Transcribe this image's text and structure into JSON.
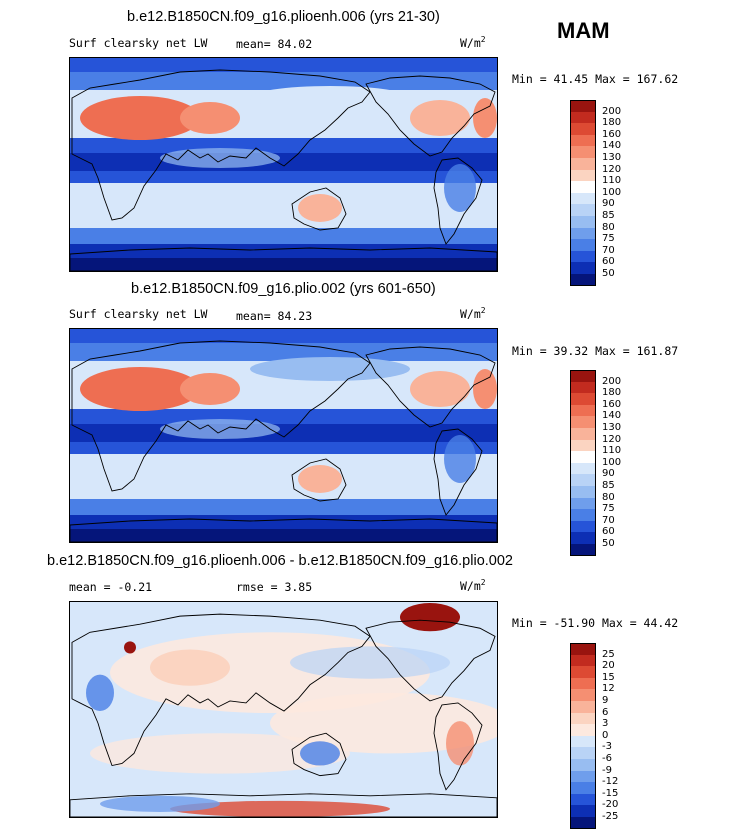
{
  "season": "MAM",
  "units_base": "W/m",
  "units_exp": "2",
  "panels": [
    {
      "title": "b.e12.B1850CN.f09_g16.plioenh.006 (yrs 21-30)",
      "variable": "Surf clearsky net LW",
      "mean_text": "mean=  84.02",
      "rmse_text": "",
      "minmax_text": "Min =  41.45 Max = 167.62"
    },
    {
      "title": "b.e12.B1850CN.f09_g16.plio.002 (yrs 601-650)",
      "variable": "Surf clearsky net LW",
      "mean_text": "mean=  84.23",
      "rmse_text": "",
      "minmax_text": "Min =  39.32 Max = 161.87"
    },
    {
      "title": "b.e12.B1850CN.f09_g16.plioenh.006 - b.e12.B1850CN.f09_g16.plio.002",
      "variable": "",
      "mean_text": "mean =  -0.21",
      "rmse_text": "rmse =   3.85",
      "minmax_text": "Min = -51.90 Max =  44.42"
    }
  ],
  "chart_data": [
    {
      "type": "heatmap",
      "title": "b.e12.B1850CN.f09_g16.plioenh.006 (yrs 21-30)",
      "variable": "Surf clearsky net LW",
      "units": "W/m2",
      "mean": 84.02,
      "min": 41.45,
      "max": 167.62,
      "colorbar_levels": [
        "200",
        "180",
        "160",
        "140",
        "130",
        "120",
        "110",
        "100",
        "90",
        "85",
        "80",
        "75",
        "70",
        "60",
        "50"
      ],
      "colorbar_colors": [
        "#99140f",
        "#c22b1f",
        "#dd4a33",
        "#ee6e52",
        "#f58f72",
        "#f9b39a",
        "#fbd4c1",
        "#ffffff",
        "#d7e7fa",
        "#b9d3f6",
        "#98bdf1",
        "#6f9eec",
        "#4a7fe6",
        "#2654d8",
        "#0d2fb4",
        "#05157a"
      ]
    },
    {
      "type": "heatmap",
      "title": "b.e12.B1850CN.f09_g16.plio.002 (yrs 601-650)",
      "variable": "Surf clearsky net LW",
      "units": "W/m2",
      "mean": 84.23,
      "min": 39.32,
      "max": 161.87,
      "colorbar_levels": [
        "200",
        "180",
        "160",
        "140",
        "130",
        "120",
        "110",
        "100",
        "90",
        "85",
        "80",
        "75",
        "70",
        "60",
        "50"
      ],
      "colorbar_colors": [
        "#99140f",
        "#c22b1f",
        "#dd4a33",
        "#ee6e52",
        "#f58f72",
        "#f9b39a",
        "#fbd4c1",
        "#ffffff",
        "#d7e7fa",
        "#b9d3f6",
        "#98bdf1",
        "#6f9eec",
        "#4a7fe6",
        "#2654d8",
        "#0d2fb4",
        "#05157a"
      ]
    },
    {
      "type": "heatmap",
      "title": "b.e12.B1850CN.f09_g16.plioenh.006 - b.e12.B1850CN.f09_g16.plio.002",
      "units": "W/m2",
      "mean": -0.21,
      "rmse": 3.85,
      "min": -51.9,
      "max": 44.42,
      "colorbar_levels": [
        "25",
        "20",
        "15",
        "12",
        "9",
        "6",
        "3",
        "0",
        "-3",
        "-6",
        "-9",
        "-12",
        "-15",
        "-20",
        "-25"
      ],
      "colorbar_colors": [
        "#99140f",
        "#c22b1f",
        "#dd4a33",
        "#ee6e52",
        "#f58f72",
        "#f9b39a",
        "#fbd4c1",
        "#fde9df",
        "#d7e7fa",
        "#b9d3f6",
        "#98bdf1",
        "#6f9eec",
        "#4a7fe6",
        "#2654d8",
        "#0d2fb4",
        "#05157a"
      ]
    }
  ]
}
